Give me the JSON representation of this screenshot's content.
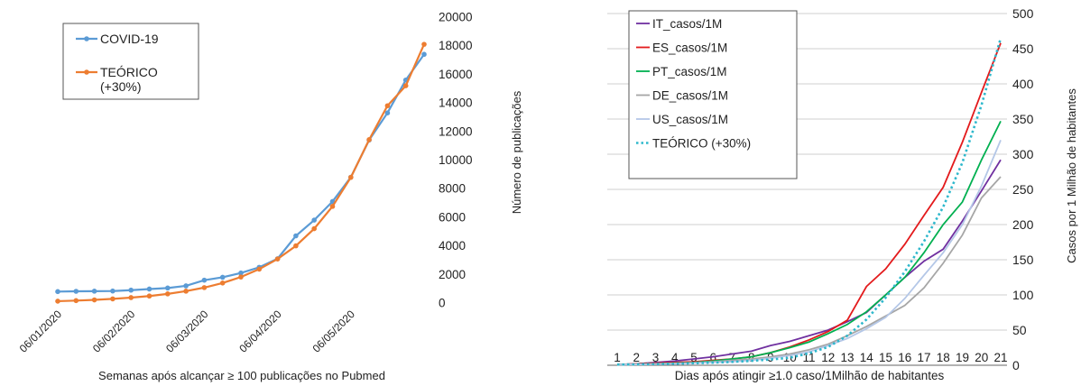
{
  "chart_data": [
    {
      "type": "line",
      "xlabel": "Semanas após alcançar ≥ 100 publicações no Pubmed",
      "ylabel": "Número de publicações",
      "ylim": [
        0,
        20000
      ],
      "yticks": [
        0,
        2000,
        4000,
        6000,
        8000,
        10000,
        12000,
        14000,
        16000,
        18000,
        20000
      ],
      "x_tick_labels": [
        "06/01/2020",
        "06/02/2020",
        "06/03/2020",
        "06/04/2020",
        "06/05/2020"
      ],
      "grid": false,
      "legend_position": "top-left",
      "series": [
        {
          "name": "COVID-19",
          "color": "#5B9BD5",
          "values": [
            800,
            820,
            830,
            840,
            900,
            980,
            1050,
            1200,
            1600,
            1800,
            2100,
            2500,
            3100,
            4700,
            5800,
            7100,
            8800,
            11400,
            13300,
            15600,
            17400
          ]
        },
        {
          "name": "TEÓRICO",
          "name_line2": "(+30%)",
          "color": "#ED7D31",
          "values": [
            130,
            170,
            220,
            290,
            380,
            490,
            640,
            830,
            1080,
            1400,
            1820,
            2370,
            3080,
            4000,
            5200,
            6760,
            8790,
            11430,
            13800,
            15200,
            18100
          ]
        }
      ]
    },
    {
      "type": "line",
      "xlabel": "Dias após atingir ≥1.0 caso/1Milhão de habitantes",
      "ylabel": "Casos por 1 Milhão de habitantes",
      "ylim": [
        0,
        500
      ],
      "yticks": [
        0,
        50,
        100,
        150,
        200,
        250,
        300,
        350,
        400,
        450,
        500
      ],
      "categories": [
        1,
        2,
        3,
        4,
        5,
        6,
        7,
        8,
        9,
        10,
        11,
        12,
        13,
        14,
        15,
        16,
        17,
        18,
        19,
        20,
        21
      ],
      "grid": true,
      "legend_position": "top-left",
      "series": [
        {
          "name": "IT_casos/1M",
          "color": "#7030A0",
          "dash": false,
          "values": [
            1,
            2,
            4,
            6,
            9,
            12,
            16,
            20,
            28,
            34,
            42,
            50,
            62,
            75,
            100,
            125,
            148,
            165,
            205,
            248,
            292
          ]
        },
        {
          "name": "ES_casos/1M",
          "color": "#E31A1C",
          "dash": false,
          "values": [
            1,
            2,
            3,
            4,
            5,
            7,
            9,
            12,
            18,
            26,
            36,
            48,
            64,
            112,
            137,
            172,
            213,
            253,
            317,
            388,
            458
          ]
        },
        {
          "name": "PT_casos/1M",
          "color": "#00B050",
          "dash": false,
          "values": [
            1,
            1.5,
            2,
            3,
            4,
            6,
            9,
            12,
            18,
            25,
            33,
            45,
            58,
            76,
            100,
            125,
            160,
            200,
            232,
            292,
            347
          ]
        },
        {
          "name": "DE_casos/1M",
          "color": "#A6A6A6",
          "dash": false,
          "values": [
            1,
            1.3,
            1.8,
            2.5,
            3.5,
            5,
            7,
            9,
            12,
            16,
            22,
            30,
            42,
            55,
            70,
            85,
            110,
            145,
            185,
            238,
            268
          ]
        },
        {
          "name": "US_casos/1M",
          "color": "#B4C7E7",
          "dash": false,
          "values": [
            1,
            1.2,
            1.6,
            2,
            3,
            4,
            5,
            7,
            10,
            14,
            19,
            28,
            38,
            52,
            68,
            95,
            128,
            160,
            200,
            255,
            320
          ]
        },
        {
          "name": "TEÓRICO (+30%)",
          "color": "#2EB8CC",
          "dash": true,
          "values": [
            1,
            1.3,
            1.7,
            2.2,
            2.9,
            3.7,
            4.8,
            6.3,
            8.2,
            10.6,
            17,
            26,
            42,
            65,
            96,
            133,
            176,
            225,
            288,
            370,
            465
          ]
        }
      ]
    }
  ]
}
